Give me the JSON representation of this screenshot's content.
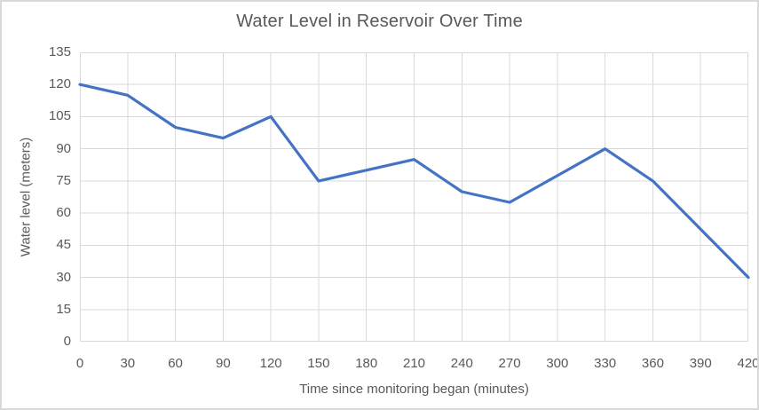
{
  "chart": {
    "title": "Water Level in Reservoir Over Time",
    "x_axis_title": "Time since monitoring began (minutes)",
    "y_axis_title": "Water level (meters)"
  },
  "chart_data": {
    "type": "line",
    "title": "Water Level in Reservoir Over Time",
    "xlabel": "Time since monitoring began (minutes)",
    "ylabel": "Water level (meters)",
    "x": [
      0,
      30,
      60,
      90,
      120,
      150,
      180,
      210,
      240,
      270,
      300,
      330,
      360,
      390,
      420
    ],
    "values": [
      120,
      115,
      100,
      95,
      105,
      75,
      80,
      85,
      70,
      65,
      77.5,
      90,
      75,
      52.5,
      30
    ],
    "series_name": "Water level",
    "xlim": [
      0,
      420
    ],
    "ylim": [
      0,
      135
    ],
    "x_ticks": [
      0,
      30,
      60,
      90,
      120,
      150,
      180,
      210,
      240,
      270,
      300,
      330,
      360,
      390,
      420
    ],
    "y_ticks": [
      0,
      15,
      30,
      45,
      60,
      75,
      90,
      105,
      120,
      135
    ],
    "grid": true,
    "legend": false,
    "line_color": "#4472C4",
    "grid_color": "#D9D9D9",
    "text_color": "#595959",
    "background_color": "#FFFFFF",
    "border_color": "#D9D9D9"
  }
}
